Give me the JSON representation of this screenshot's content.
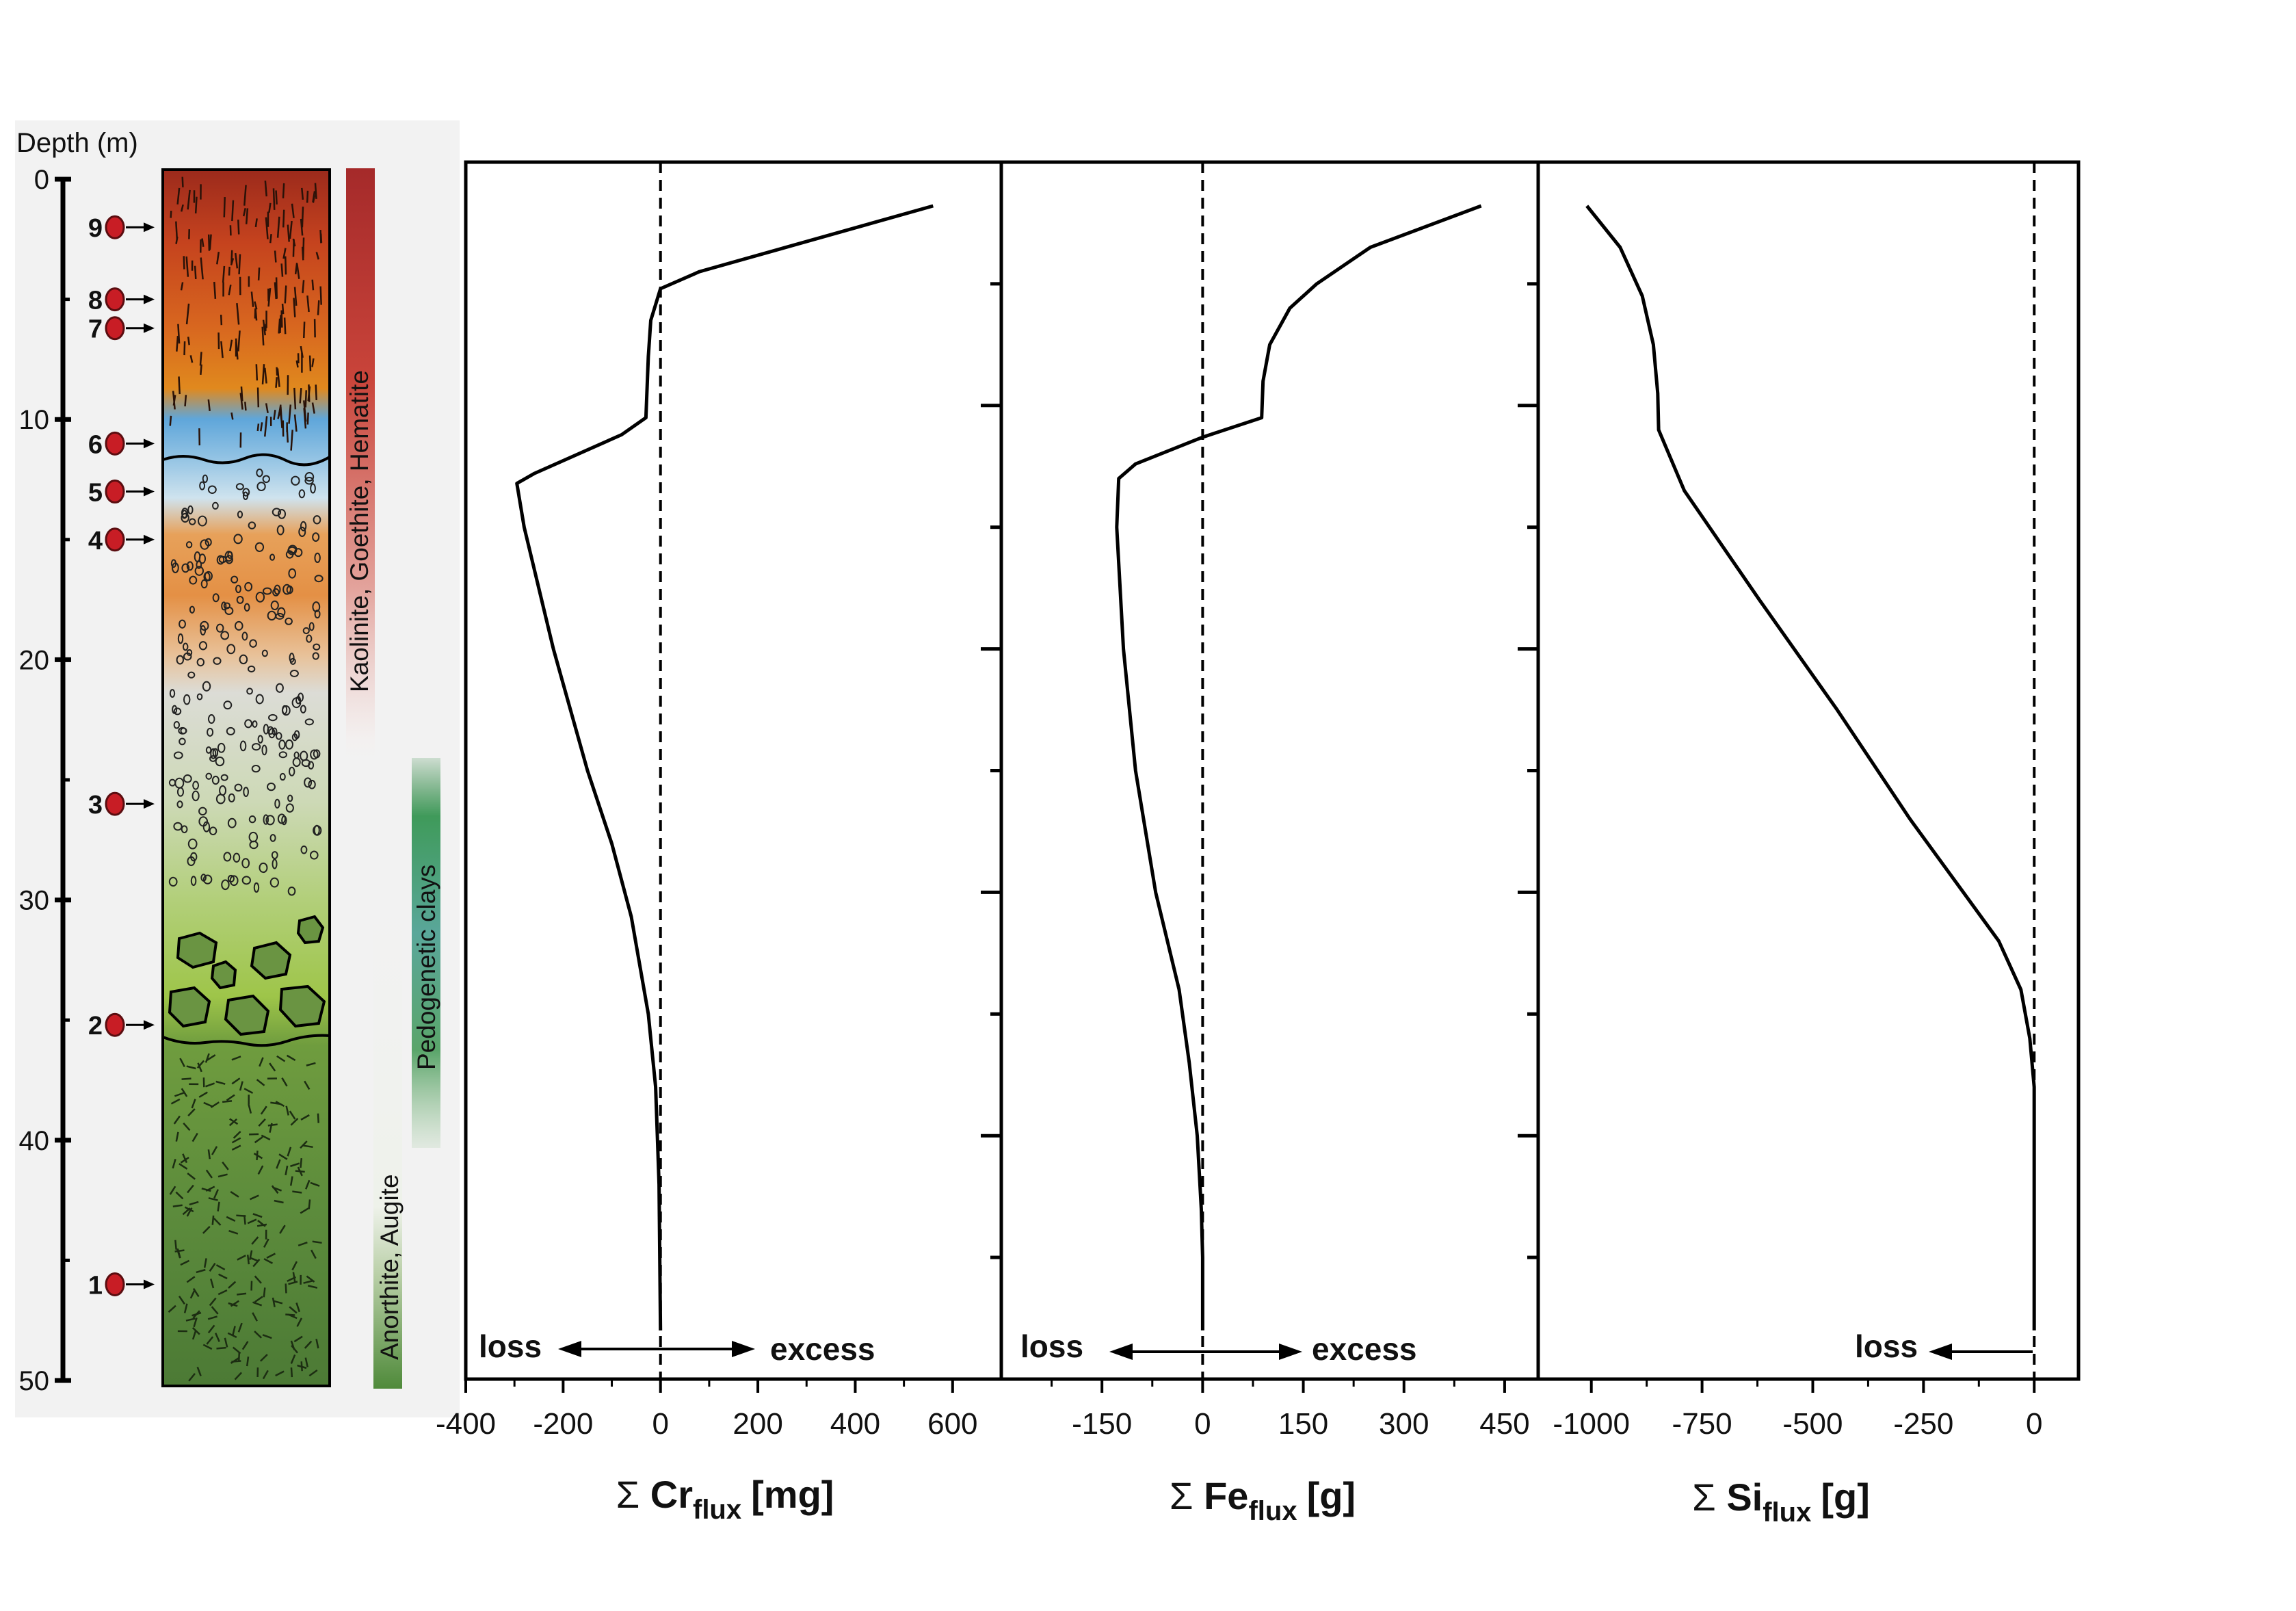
{
  "depth_axis": {
    "label": "Depth (m)",
    "ticks": [
      "0",
      "10",
      "20",
      "30",
      "40",
      "50"
    ]
  },
  "samples": [
    {
      "id": "9",
      "depth": 2
    },
    {
      "id": "8",
      "depth": 5
    },
    {
      "id": "7",
      "depth": 6.2
    },
    {
      "id": "6",
      "depth": 11
    },
    {
      "id": "5",
      "depth": 13
    },
    {
      "id": "4",
      "depth": 15
    },
    {
      "id": "3",
      "depth": 26
    },
    {
      "id": "2",
      "depth": 35.2
    },
    {
      "id": "1",
      "depth": 46
    }
  ],
  "mineral_bands": {
    "kaolinite": "Kaolinite, Goethite, Hematite",
    "anorthite": "Anorthite, Augite",
    "pedogenetic": "Pedogenetic clays"
  },
  "colors": {
    "line": "#000000",
    "sample_marker": "#c81d25",
    "red_band": "#a52a2a",
    "green_band": "#4f8a3a",
    "panel_bg": "#f2f2f2"
  },
  "chart_data": [
    {
      "type": "line",
      "title": "",
      "xlabel_symbol": "Σ",
      "xlabel_main": "Cr",
      "xlabel_sub": "flux",
      "xlabel_unit": "[mg]",
      "xlim": [
        -400,
        700
      ],
      "xticks": [
        "-400",
        "-200",
        "0",
        "200",
        "400",
        "600"
      ],
      "ylim": [
        50,
        0
      ],
      "annotations": {
        "loss": "loss",
        "excess": "excess"
      },
      "series": [
        {
          "x": [
            560,
            80,
            0,
            -20,
            -25,
            -30,
            -80,
            -260,
            -295,
            -280,
            -220,
            -150,
            -100,
            -60,
            -25,
            -10,
            -3,
            0
          ],
          "y": [
            1.8,
            4.5,
            5.2,
            6.5,
            8.0,
            10.5,
            11.2,
            12.8,
            13.2,
            15.0,
            20.0,
            25.0,
            28.0,
            31.0,
            35.0,
            38.0,
            42.0,
            48.0
          ]
        }
      ]
    },
    {
      "type": "line",
      "title": "",
      "xlabel_symbol": "Σ",
      "xlabel_main": "Fe",
      "xlabel_sub": "flux",
      "xlabel_unit": "[g]",
      "xlim": [
        -300,
        500
      ],
      "xticks": [
        "-150",
        "0",
        "150",
        "300",
        "450"
      ],
      "ylim": [
        50,
        0
      ],
      "annotations": {
        "loss": "loss",
        "excess": "excess"
      },
      "series": [
        {
          "x": [
            415,
            250,
            170,
            130,
            100,
            90,
            88,
            0,
            -100,
            -125,
            -128,
            -118,
            -100,
            -70,
            -35,
            -20,
            -8,
            -2,
            0,
            0
          ],
          "y": [
            1.8,
            3.5,
            5.0,
            6.0,
            7.5,
            9.0,
            10.5,
            11.3,
            12.4,
            13.0,
            15.0,
            20.0,
            25.0,
            30.0,
            34.0,
            37.0,
            40.0,
            43.0,
            45.0,
            48.0
          ]
        }
      ]
    },
    {
      "type": "line",
      "title": "",
      "xlabel_symbol": "Σ",
      "xlabel_main": "Si",
      "xlabel_sub": "flux",
      "xlabel_unit": "[g]",
      "xlim": [
        -1120,
        100
      ],
      "xticks": [
        "-1000",
        "-750",
        "-500",
        "-250",
        "0"
      ],
      "ylim": [
        50,
        0
      ],
      "annotations": {
        "loss": "loss"
      },
      "series": [
        {
          "x": [
            -1010,
            -935,
            -885,
            -860,
            -850,
            -848,
            -790,
            -620,
            -445,
            -280,
            -160,
            -80,
            -30,
            -10,
            0,
            0,
            0
          ],
          "y": [
            1.8,
            3.5,
            5.5,
            7.5,
            9.5,
            11.0,
            13.5,
            18.0,
            22.5,
            27.0,
            30.0,
            32.0,
            34.0,
            36.0,
            38.0,
            44.0,
            48.0
          ]
        }
      ]
    }
  ]
}
